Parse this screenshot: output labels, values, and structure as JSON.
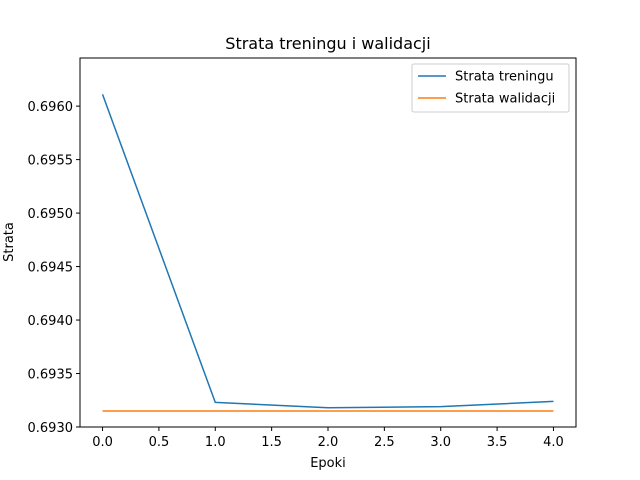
{
  "chart_data": {
    "type": "line",
    "title": "Strata treningu i walidacji",
    "xlabel": "Epoki",
    "ylabel": "Strata",
    "x": [
      0,
      1,
      2,
      3,
      4
    ],
    "xlim": [
      -0.2,
      4.2
    ],
    "ylim": [
      0.693,
      0.69645
    ],
    "xticks": [
      "0.0",
      "0.5",
      "1.0",
      "1.5",
      "2.0",
      "2.5",
      "3.0",
      "3.5",
      "4.0"
    ],
    "yticks": [
      "0.6930",
      "0.6935",
      "0.6940",
      "0.6945",
      "0.6950",
      "0.6955",
      "0.6960"
    ],
    "grid": false,
    "legend_position": "top-right",
    "series": [
      {
        "name": "Strata treningu",
        "color": "#1f77b4",
        "values": [
          0.69611,
          0.69323,
          0.69318,
          0.69319,
          0.69324
        ]
      },
      {
        "name": "Strata walidacji",
        "color": "#ff7f0e",
        "values": [
          0.69315,
          0.69315,
          0.69315,
          0.69315,
          0.69315
        ]
      }
    ]
  }
}
